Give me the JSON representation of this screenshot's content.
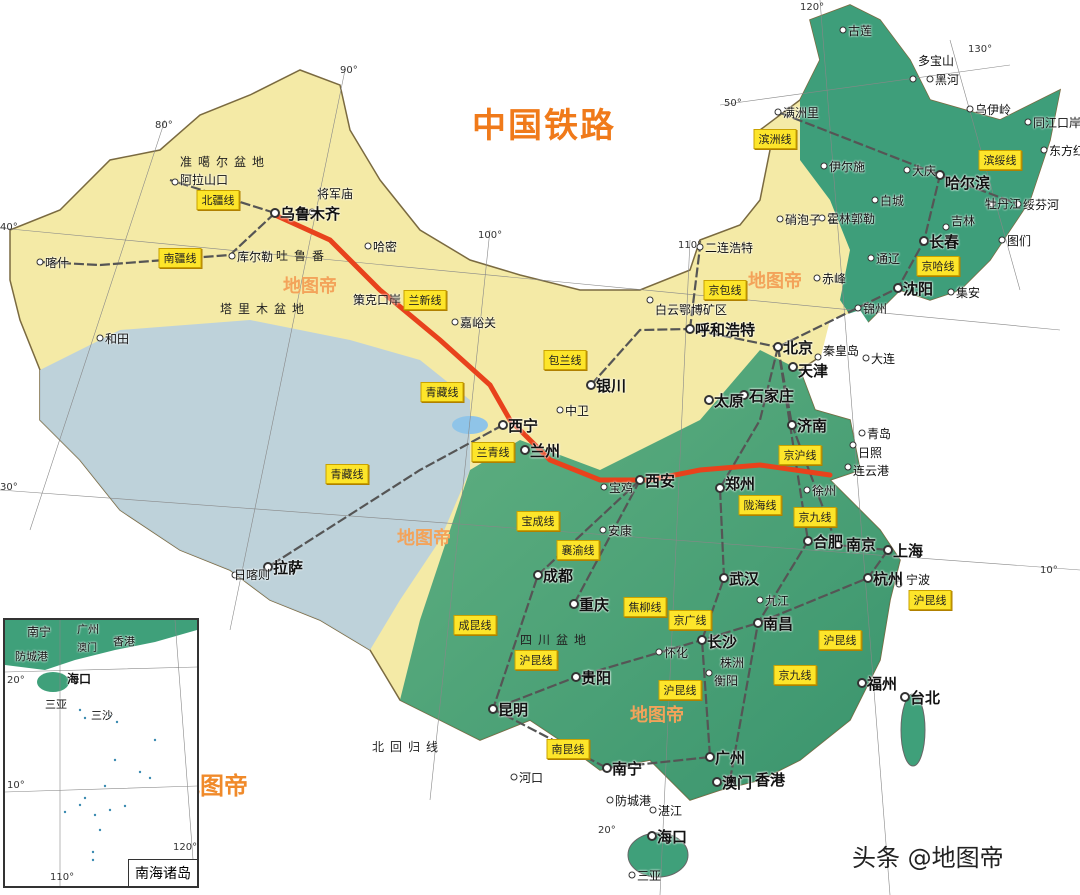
{
  "title": "中国铁路",
  "footer": "头条 @地图帝",
  "watermark": "地图帝",
  "colors": {
    "railway_highlight": "#e8421c",
    "label_bg": "#fde52a",
    "title": "#f07a1a",
    "lowland": "#3fa07a",
    "plateau": "#b9d3e8",
    "desert": "#f6eea8"
  },
  "railway_lines": [
    "北疆线",
    "南疆线",
    "兰新线",
    "包兰线",
    "青藏线",
    "兰青线",
    "青藏线",
    "宝成线",
    "襄渝线",
    "成昆线",
    "焦柳线",
    "京广线",
    "沪昆线",
    "沪昆线",
    "沪昆线",
    "沪昆线",
    "南昆线",
    "京九线",
    "京九线",
    "陇海线",
    "京沪线",
    "京包线",
    "京哈线",
    "滨洲线",
    "滨绥线"
  ],
  "cities": [
    "乌鲁木齐",
    "喀什",
    "和田",
    "库尔勒",
    "阿拉山口",
    "将军庙",
    "哈密",
    "嘉峪关",
    "拉萨",
    "日喀则",
    "西宁",
    "兰州",
    "银川",
    "中卫",
    "呼和浩特",
    "二连浩特",
    "北京",
    "天津",
    "石家庄",
    "太原",
    "济南",
    "青岛",
    "日照",
    "连云港",
    "西安",
    "宝鸡",
    "郑州",
    "徐州",
    "合肥",
    "南京",
    "上海",
    "杭州",
    "宁波",
    "武汉",
    "九江",
    "南昌",
    "长沙",
    "株洲",
    "衡阳",
    "怀化",
    "福州",
    "台北",
    "广州",
    "澳门",
    "香港",
    "南宁",
    "防城港",
    "湛江",
    "海口",
    "三亚",
    "昆明",
    "贵阳",
    "重庆",
    "成都",
    "河口",
    "哈尔滨",
    "长春",
    "沈阳",
    "大连",
    "秦皇岛",
    "锦州",
    "赤峰",
    "通辽",
    "白城",
    "满洲里",
    "绥芬河",
    "同江口岸",
    "东方红",
    "牡丹江",
    "吉林",
    "图们",
    "集安",
    "霍林郭勒",
    "伊尔施",
    "大庆",
    "黑河",
    "古莲",
    "多宝山",
    "乌伊岭",
    "硝泡子",
    "白云鄂博矿区",
    "策克口岸",
    "安康"
  ],
  "regions": [
    "塔里木盆地",
    "准噶尔盆地",
    "四川盆地",
    "吐鲁番",
    "北回归线"
  ],
  "degrees": [
    "80°",
    "90°",
    "100°",
    "110°",
    "120°",
    "130°",
    "40°",
    "30°",
    "50°",
    "20°",
    "10°"
  ],
  "inset": {
    "title": "南海诸岛",
    "cities": [
      "南宁",
      "广州",
      "香港",
      "澳门",
      "防城港",
      "海口",
      "三亚",
      "三沙"
    ],
    "degrees": [
      "20°",
      "10°",
      "110°",
      "120°"
    ]
  }
}
